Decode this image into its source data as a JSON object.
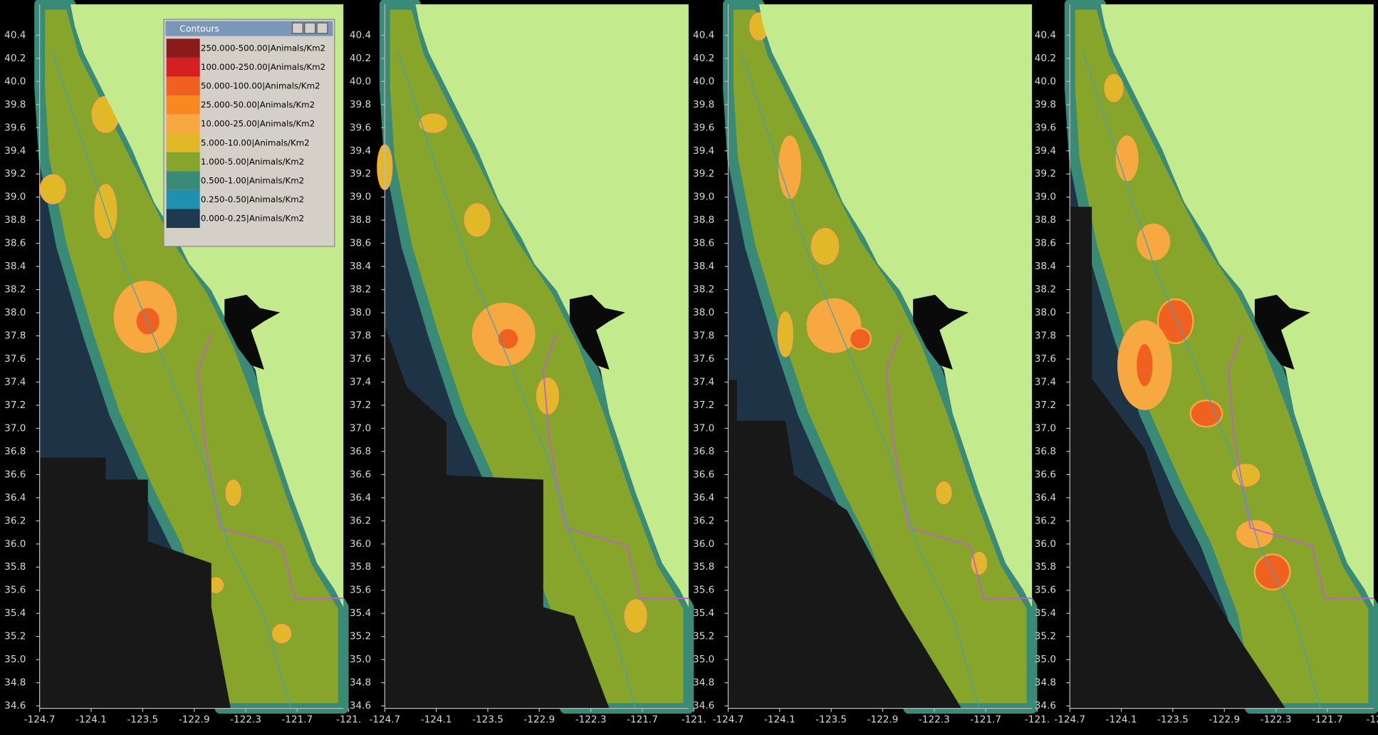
{
  "legend": {
    "title": "Contours",
    "items": [
      {
        "label": "250.000-500.00|Animals/Km2",
        "color": "#8b1a1a"
      },
      {
        "label": "100.000-250.00|Animals/Km2",
        "color": "#d42020"
      },
      {
        "label": "50.000-100.00|Animals/Km2",
        "color": "#f06020"
      },
      {
        "label": "25.000-50.00|Animals/Km2",
        "color": "#f88820"
      },
      {
        "label": "10.000-25.00|Animals/Km2",
        "color": "#f8a840"
      },
      {
        "label": "5.000-10.00|Animals/Km2",
        "color": "#e0b828"
      },
      {
        "label": "1.000-5.00|Animals/Km2",
        "color": "#86a52a"
      },
      {
        "label": "0.500-1.00|Animals/Km2",
        "color": "#3a8a78"
      },
      {
        "label": "0.250-0.50|Animals/Km2",
        "color": "#2090b0"
      },
      {
        "label": "0.000-0.25|Animals/Km2",
        "color": "#1e3a50"
      }
    ]
  },
  "axes": {
    "lat_labels": [
      "40.4",
      "40.2",
      "40.0",
      "39.8",
      "39.6",
      "39.4",
      "39.2",
      "39.0",
      "38.8",
      "38.6",
      "38.4",
      "38.2",
      "38.0",
      "37.8",
      "37.6",
      "37.4",
      "37.2",
      "37.0",
      "36.8",
      "36.6",
      "36.4",
      "36.2",
      "36.0",
      "35.8",
      "35.6",
      "35.4",
      "35.2",
      "35.0",
      "34.8",
      "34.6"
    ],
    "lon_labels": [
      "-124.7",
      "-124.1",
      "-123.5",
      "-122.9",
      "-122.3",
      "-121.7",
      "-121."
    ]
  }
}
